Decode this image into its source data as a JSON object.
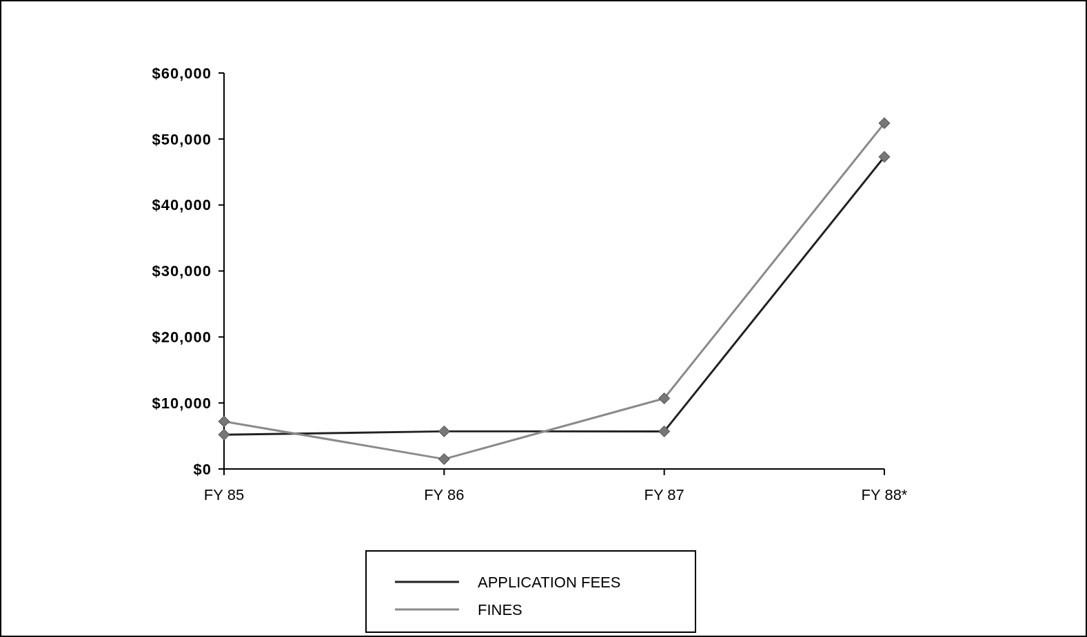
{
  "chart_data": {
    "type": "line",
    "categories": [
      "FY 85",
      "FY 86",
      "FY 87",
      "FY 88*"
    ],
    "series": [
      {
        "name": "APPLICATION FEES",
        "color": "#222222",
        "values": [
          5200,
          5700,
          5700,
          47300
        ]
      },
      {
        "name": "FINES",
        "color": "#8a8a8a",
        "values": [
          7200,
          1500,
          10700,
          52400
        ]
      }
    ],
    "ylim": [
      0,
      60000
    ],
    "yticks": [
      {
        "value": 0,
        "label": "$0"
      },
      {
        "value": 10000,
        "label": "$10,000"
      },
      {
        "value": 20000,
        "label": "$20,000"
      },
      {
        "value": 30000,
        "label": "$30,000"
      },
      {
        "value": 40000,
        "label": "$40,000"
      },
      {
        "value": 50000,
        "label": "$50,000"
      },
      {
        "value": 60000,
        "label": "$60,000"
      }
    ],
    "marker": "diamond",
    "line_style": "solid",
    "legend": "bottom"
  }
}
